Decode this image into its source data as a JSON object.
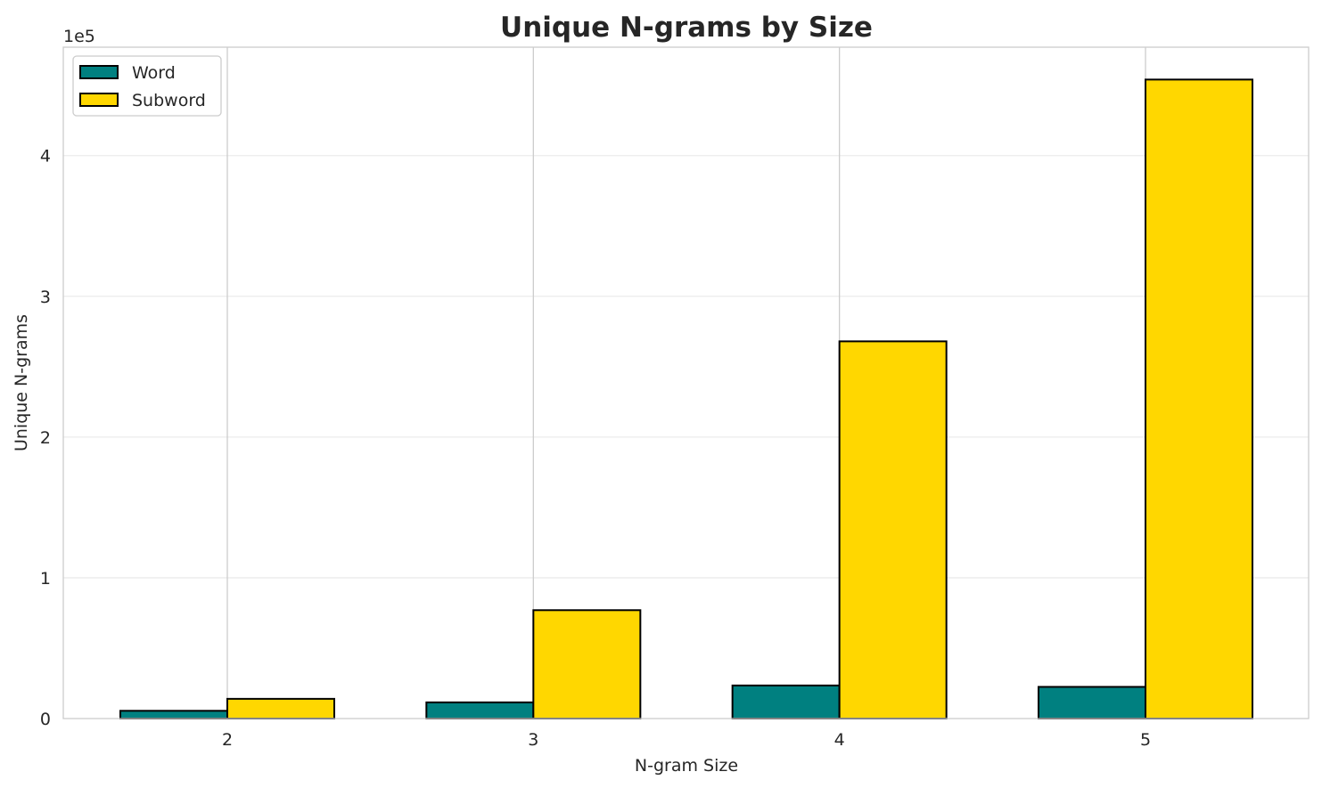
{
  "chart_data": {
    "type": "bar",
    "title": "Unique N-grams by Size",
    "xlabel": "N-gram Size",
    "ylabel": "Unique N-grams",
    "y_offset_label": "1e5",
    "categories": [
      "2",
      "3",
      "4",
      "5"
    ],
    "series": [
      {
        "name": "Word",
        "color": "#008080",
        "values": [
          5500,
          11500,
          23500,
          22500
        ]
      },
      {
        "name": "Subword",
        "color": "#FFD700",
        "values": [
          14000,
          77000,
          268000,
          454000
        ]
      }
    ],
    "ylim": [
      0,
      477000
    ],
    "yticks": [
      0,
      100000,
      200000,
      300000,
      400000
    ],
    "ytick_labels": [
      "0",
      "1",
      "2",
      "3",
      "4"
    ],
    "grid": true,
    "legend_position": "upper-left"
  }
}
